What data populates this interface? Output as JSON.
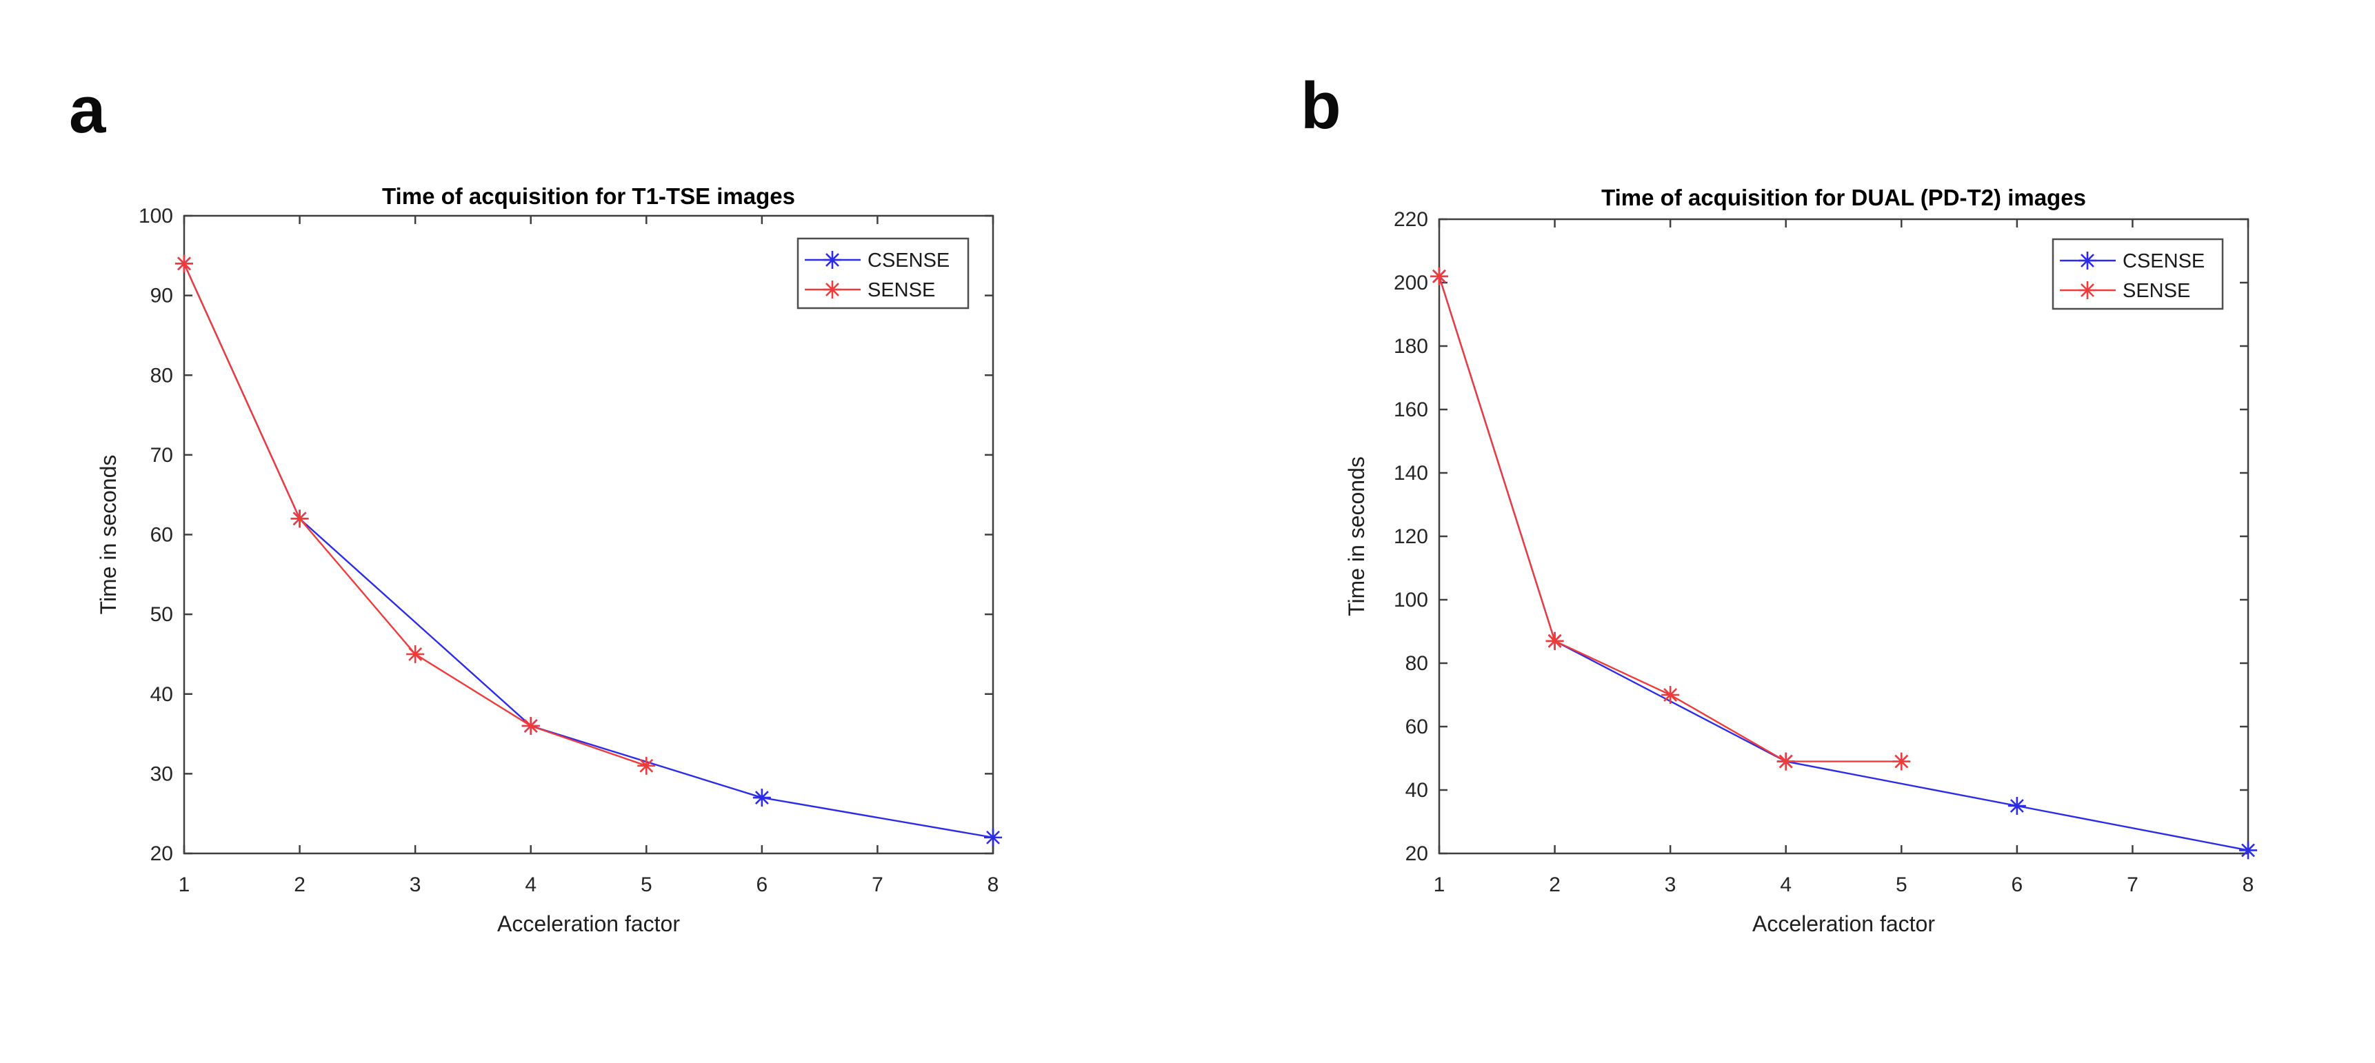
{
  "figure": {
    "background": "#ffffff"
  },
  "panel_labels": [
    {
      "text": "a"
    },
    {
      "text": "b"
    }
  ],
  "style": {
    "axis_color": "#3f3f3f",
    "tick_label_color": "#262626",
    "title_color": "#000000",
    "axis_label_color": "#1f1f1f",
    "legend_border_color": "#4d4d4d",
    "legend_text_color": "#1a1a1a",
    "csense_color": "#2b2bea",
    "sense_color": "#ef3b3b"
  },
  "chart_data": [
    {
      "type": "line",
      "panel": "a",
      "title": "Time of acquisition for T1-TSE images",
      "xlabel": "Acceleration factor",
      "ylabel": "Time in seconds",
      "xlim": [
        1,
        8
      ],
      "ylim": [
        20,
        100
      ],
      "xticks": [
        1,
        2,
        3,
        4,
        5,
        6,
        7,
        8
      ],
      "yticks": [
        20,
        30,
        40,
        50,
        60,
        70,
        80,
        90,
        100
      ],
      "grid": false,
      "legend_position": "top-right",
      "legend_entries": [
        "CSENSE",
        "SENSE"
      ],
      "series": [
        {
          "name": "CSENSE",
          "color": "#2b2bea",
          "marker": "asterisk",
          "x": [
            1,
            2,
            4,
            6,
            8
          ],
          "y": [
            94,
            62,
            36,
            27,
            22
          ]
        },
        {
          "name": "SENSE",
          "color": "#ef3b3b",
          "marker": "asterisk",
          "x": [
            1,
            2,
            3,
            4,
            5
          ],
          "y": [
            94,
            62,
            45,
            36,
            31
          ]
        }
      ]
    },
    {
      "type": "line",
      "panel": "b",
      "title": "Time of acquisition for DUAL (PD-T2) images",
      "xlabel": "Acceleration factor",
      "ylabel": "Time in seconds",
      "xlim": [
        1,
        8
      ],
      "ylim": [
        20,
        220
      ],
      "xticks": [
        1,
        2,
        3,
        4,
        5,
        6,
        7,
        8
      ],
      "yticks": [
        20,
        40,
        60,
        80,
        100,
        120,
        140,
        160,
        180,
        200,
        220
      ],
      "grid": false,
      "legend_position": "top-right",
      "legend_entries": [
        "CSENSE",
        "SENSE"
      ],
      "series": [
        {
          "name": "CSENSE",
          "color": "#2b2bea",
          "marker": "asterisk",
          "x": [
            1,
            2,
            4,
            6,
            8
          ],
          "y": [
            202,
            87,
            49,
            35,
            21
          ]
        },
        {
          "name": "SENSE",
          "color": "#ef3b3b",
          "marker": "asterisk",
          "x": [
            1,
            2,
            3,
            4,
            5
          ],
          "y": [
            202,
            87,
            70,
            49,
            49
          ]
        }
      ]
    }
  ]
}
